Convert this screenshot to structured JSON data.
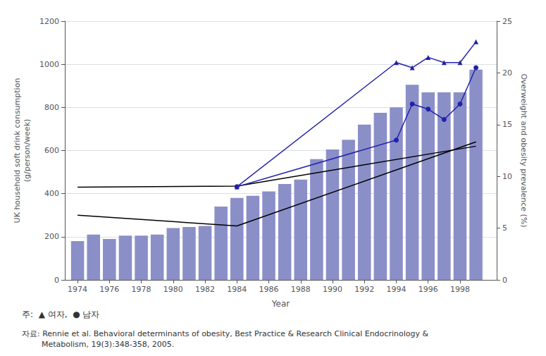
{
  "chart_data": {
    "type": "bar",
    "xlabel": "Year",
    "ylabel": "UK household soft drink consumption\n(g/person/week)",
    "y2label": "Overweight and obesity prevalence (%)",
    "xlim": [
      1973.2,
      2000.3
    ],
    "xticks": [
      1974,
      1976,
      1978,
      1980,
      1982,
      1984,
      1986,
      1988,
      1990,
      1992,
      1994,
      1996,
      1998
    ],
    "ylim": [
      0,
      1200
    ],
    "yticks": [
      0,
      200,
      400,
      600,
      800,
      1000,
      1200
    ],
    "y2lim": [
      0,
      25
    ],
    "y2ticks": [
      0,
      5,
      10,
      15,
      20,
      25
    ],
    "grid": true,
    "legend": false,
    "series": [
      {
        "type": "bar",
        "color": "#8b8fc8",
        "x": [
          1974,
          1975,
          1976,
          1977,
          1978,
          1979,
          1980,
          1981,
          1982,
          1983,
          1984,
          1985,
          1986,
          1987,
          1988,
          1989,
          1990,
          1991,
          1992,
          1993,
          1994,
          1995,
          1996,
          1997,
          1998,
          1999
        ],
        "values": [
          180,
          210,
          190,
          205,
          205,
          210,
          240,
          245,
          250,
          340,
          380,
          390,
          410,
          445,
          465,
          560,
          605,
          650,
          720,
          775,
          800,
          905,
          870,
          870,
          870,
          975
        ]
      },
      {
        "type": "line",
        "color": "#000000",
        "marker": "none",
        "x": [
          1974,
          1984,
          1999
        ],
        "values": [
          430,
          435,
          620
        ]
      },
      {
        "type": "line",
        "color": "#000000",
        "marker": "none",
        "x": [
          1974,
          1984,
          1999
        ],
        "values": [
          300,
          250,
          640
        ]
      },
      {
        "type": "line",
        "axis": "y2",
        "color": "#2222aa",
        "marker": "triangle",
        "x": [
          1984,
          1994,
          1995,
          1996,
          1997,
          1998,
          1999
        ],
        "values": [
          9.0,
          21.0,
          20.5,
          21.5,
          21.0,
          21.0,
          23.0
        ]
      },
      {
        "type": "line",
        "axis": "y2",
        "color": "#2222aa",
        "marker": "circle",
        "x": [
          1984,
          1994,
          1995,
          1996,
          1997,
          1998,
          1999
        ],
        "values": [
          9.0,
          13.5,
          17.0,
          16.5,
          15.5,
          17.0,
          20.5
        ]
      }
    ],
    "annotations": [
      "주:  ▲ 여자,  ● 남자",
      "자료: Rennie et al. Behavioral determinants of obesity, Best Practice & Research Clinical Endocrinology &",
      "        Metabolism, 19(3):348-358, 2005."
    ]
  }
}
